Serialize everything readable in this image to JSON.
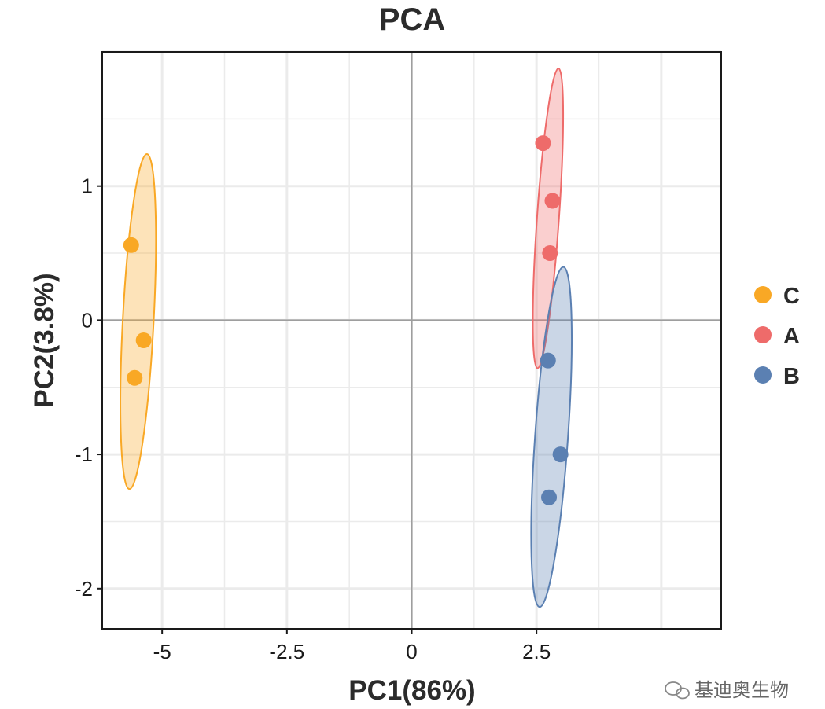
{
  "chart_data": {
    "type": "scatter",
    "title": "PCA",
    "xlabel": "PC1(86%)",
    "ylabel": "PC2(3.8%)",
    "xlim": [
      -6.2,
      6.2
    ],
    "ylim": [
      -2.3,
      2.0
    ],
    "xticks": [
      -5,
      -2.5,
      0,
      2.5
    ],
    "xtick_labels": [
      "-5",
      "-2.5",
      "0",
      "2.5"
    ],
    "yticks": [
      -2,
      -1,
      0,
      1
    ],
    "ytick_labels": [
      "-2",
      "-1",
      "0",
      "1"
    ],
    "grid": true,
    "legend_position": "right",
    "series": [
      {
        "name": "C",
        "color": "#F9A825",
        "points": [
          [
            -5.62,
            0.56
          ],
          [
            -5.37,
            -0.15
          ],
          [
            -5.55,
            -0.43
          ]
        ],
        "ellipse": {
          "cx": -5.48,
          "cy": -0.01,
          "rx": 0.31,
          "ry": 1.25,
          "angle_deg": 3
        }
      },
      {
        "name": "A",
        "color": "#EE6B6A",
        "points": [
          [
            2.63,
            1.32
          ],
          [
            2.82,
            0.89
          ],
          [
            2.77,
            0.5
          ]
        ],
        "ellipse": {
          "cx": 2.73,
          "cy": 0.76,
          "rx": 0.22,
          "ry": 1.12,
          "angle_deg": 4
        }
      },
      {
        "name": "B",
        "color": "#5B80B2",
        "points": [
          [
            2.73,
            -0.3
          ],
          [
            2.98,
            -1.0
          ],
          [
            2.75,
            -1.32
          ]
        ],
        "ellipse": {
          "cx": 2.8,
          "cy": -0.87,
          "rx": 0.33,
          "ry": 1.27,
          "angle_deg": 4
        }
      }
    ],
    "legend_order": [
      "C",
      "A",
      "B"
    ]
  },
  "watermark": {
    "text": "基迪奥生物",
    "icon": "wechat-icon"
  }
}
